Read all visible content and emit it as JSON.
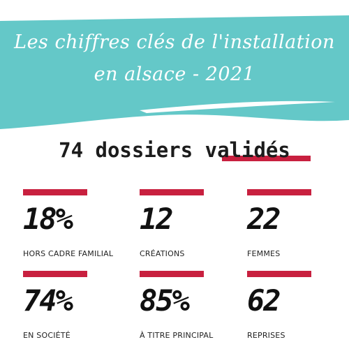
{
  "banner": {
    "title_line1": "Les chiffres clés de l'installation",
    "title_line2": "en alsace - 2021",
    "background_color": "#64c8c8"
  },
  "headline": {
    "text": "74 dossiers validés"
  },
  "accent_color": "#c8203f",
  "stats": [
    {
      "value": "18%",
      "label": "HORS CADRE FAMILIAL"
    },
    {
      "value": "12",
      "label": "CRÉATIONS"
    },
    {
      "value": "22",
      "label": "FEMMES"
    },
    {
      "value": "74%",
      "label": "EN SOCIÉTÉ"
    },
    {
      "value": "85%",
      "label": "À TITRE PRINCIPAL"
    },
    {
      "value": "62",
      "label": "REPRISES"
    }
  ]
}
